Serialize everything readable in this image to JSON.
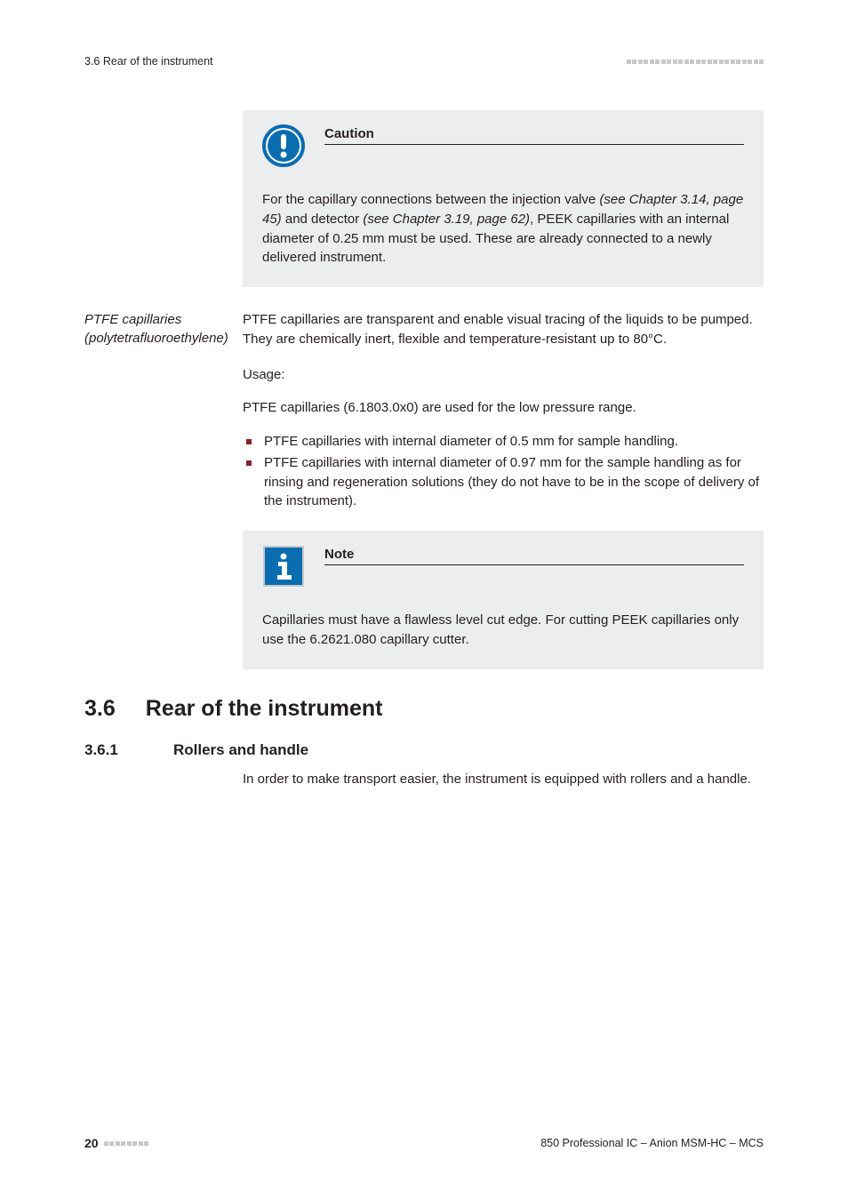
{
  "header": {
    "section_ref": "3.6 Rear of the instrument",
    "dot_count_right": 24
  },
  "caution_box": {
    "title": "Caution",
    "body_pre": "For the capillary connections between the injection valve ",
    "body_ref1": "(see Chapter 3.14, page 45)",
    "body_mid": " and detector ",
    "body_ref2": "(see Chapter 3.19, page 62)",
    "body_post": ", PEEK capillaries with an internal diameter of 0.25 mm must be used. These are already connected to a newly delivered instrument.",
    "icon_colors": {
      "ring": "#0a6db0",
      "fill": "#ffffff",
      "mark": "#0a6db0"
    }
  },
  "ptfe": {
    "side_label": "PTFE capillaries (polytetrafluoroethylene)",
    "intro": "PTFE capillaries are transparent and enable visual tracing of the liquids to be pumped. They are chemically inert, flexible and temperature-resistant up to 80°C.",
    "usage_label": "Usage:",
    "usage_line": "PTFE capillaries (6.1803.0x0) are used for the low pressure range.",
    "bullets": [
      "PTFE capillaries with internal diameter of 0.5 mm for sample handling.",
      "PTFE capillaries with internal diameter of 0.97 mm for the sample handling as for rinsing and regeneration solutions (they do not have to be in the scope of delivery of the instrument)."
    ]
  },
  "note_box": {
    "title": "Note",
    "body": "Capillaries must have a flawless level cut edge. For cutting PEEK capillaries only use the 6.2621.080 capillary cutter.",
    "icon_colors": {
      "bg": "#0a6db0",
      "border": "#c7c8ca",
      "mark": "#ffffff"
    }
  },
  "sections": {
    "h1_num": "3.6",
    "h1_title": "Rear of the instrument",
    "h2_num": "3.6.1",
    "h2_title": "Rollers and handle",
    "h2_body": "In order to make transport easier, the instrument is equipped with rollers and a handle."
  },
  "footer": {
    "page_number": "20",
    "dot_count_left": 8,
    "doc_title": "850 Professional IC – Anion MSM-HC – MCS"
  },
  "colors": {
    "text": "#231f20",
    "dot": "#c7c8ca",
    "bullet": "#8a1f2a",
    "callout_bg": "#ecedee"
  }
}
